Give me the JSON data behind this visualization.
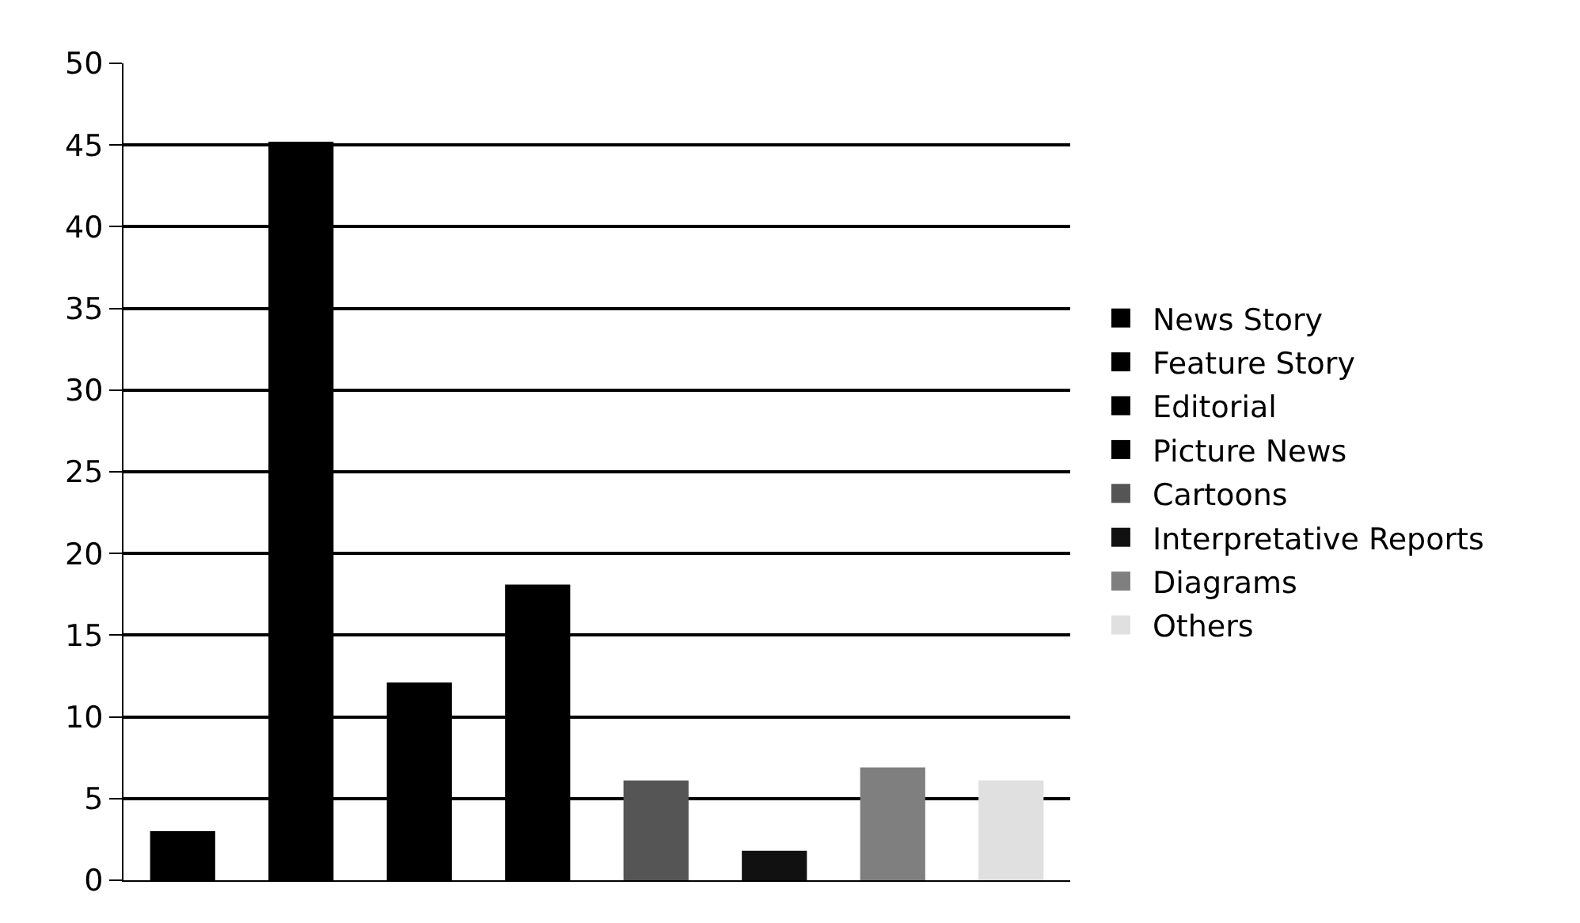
{
  "chart_data": {
    "type": "bar",
    "categories": [
      null,
      null,
      null,
      null,
      null,
      null,
      null,
      null
    ],
    "series": [
      {
        "name": "News Story",
        "color": "#000000",
        "values": [
          3,
          null,
          null,
          null,
          null,
          null,
          null,
          null
        ]
      },
      {
        "name": "Feature Story",
        "color": "#000000",
        "values": [
          null,
          45.2,
          null,
          null,
          null,
          null,
          null,
          null
        ]
      },
      {
        "name": "Editorial",
        "color": "#000000",
        "values": [
          null,
          null,
          12.1,
          null,
          null,
          null,
          null,
          null
        ]
      },
      {
        "name": "Picture News",
        "color": "#000000",
        "values": [
          null,
          null,
          null,
          18.1,
          null,
          null,
          null,
          null
        ]
      },
      {
        "name": "Cartoons",
        "color": "#555555",
        "values": [
          null,
          null,
          null,
          null,
          6.1,
          null,
          null,
          null
        ]
      },
      {
        "name": "Interpretative Reports",
        "color": "#111111",
        "values": [
          null,
          null,
          null,
          null,
          null,
          1.8,
          null,
          null
        ]
      },
      {
        "name": "Diagrams",
        "color": "#7f7f7f",
        "values": [
          null,
          null,
          null,
          null,
          null,
          null,
          6.9,
          null
        ]
      },
      {
        "name": "Others",
        "color": "#e0e0e0",
        "values": [
          null,
          null,
          null,
          null,
          null,
          null,
          null,
          6.1
        ]
      }
    ],
    "ylim": [
      0,
      50
    ],
    "yticks": [
      0,
      5,
      10,
      15,
      20,
      25,
      30,
      35,
      40,
      45,
      50
    ],
    "grid": "y",
    "legend": "right",
    "tick_labels": "y"
  }
}
